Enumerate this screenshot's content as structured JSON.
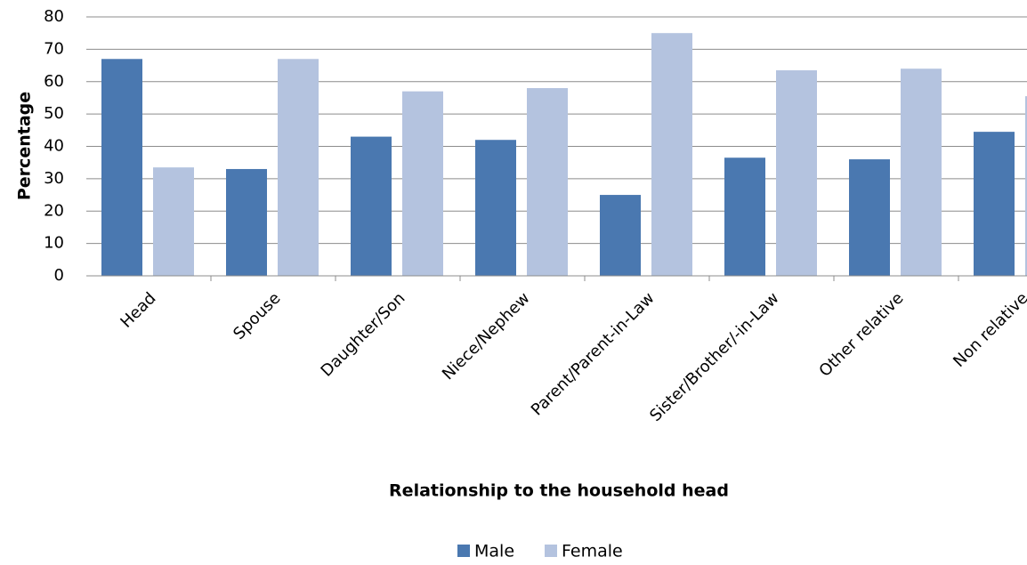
{
  "chart_data": {
    "type": "bar",
    "title": "",
    "xlabel": "Relationship to the household head",
    "ylabel": "Percentage",
    "ylim": [
      0,
      80
    ],
    "yticks": [
      0,
      10,
      20,
      30,
      40,
      50,
      60,
      70,
      80
    ],
    "grid": true,
    "legend_position": "bottom",
    "categories": [
      "Head",
      "Spouse",
      "Daughter/Son",
      "Niece/Nephew",
      "Parent/Parent-in-Law",
      "Sister/Brother/-in-Law",
      "Other relative",
      "Non relative"
    ],
    "series": [
      {
        "name": "Male",
        "color": "#4a78b0",
        "values": [
          67,
          33,
          43,
          42,
          25,
          36.5,
          36,
          44.5
        ]
      },
      {
        "name": "Female",
        "color": "#b4c3df",
        "values": [
          33.5,
          67,
          57,
          58,
          75,
          63.5,
          64,
          55.5
        ]
      }
    ]
  }
}
